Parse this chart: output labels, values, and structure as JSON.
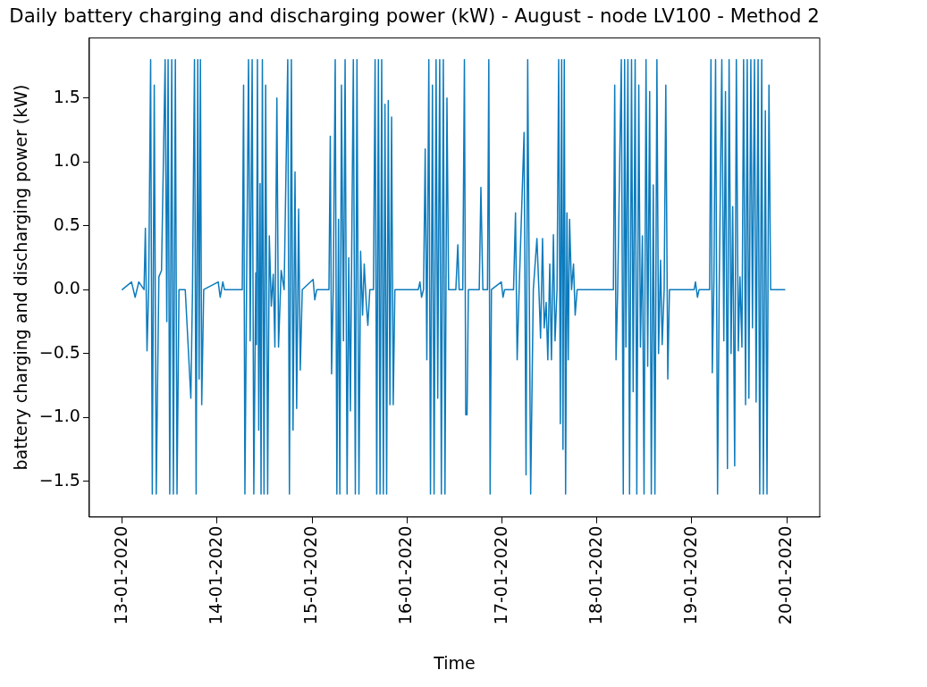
{
  "chart_data": {
    "type": "line",
    "title": "Daily battery charging and discharging power (kW) - August - node LV100 - Method 2",
    "xlabel": "Time",
    "ylabel": "battery charging and discharging power (kW)",
    "xlim": [
      "2020-01-12T15:40",
      "2020-01-20T08:20"
    ],
    "xticks": [
      {
        "value": "2020-01-13",
        "label": "13-01-2020"
      },
      {
        "value": "2020-01-14",
        "label": "14-01-2020"
      },
      {
        "value": "2020-01-15",
        "label": "15-01-2020"
      },
      {
        "value": "2020-01-16",
        "label": "16-01-2020"
      },
      {
        "value": "2020-01-17",
        "label": "17-01-2020"
      },
      {
        "value": "2020-01-18",
        "label": "18-01-2020"
      },
      {
        "value": "2020-01-19",
        "label": "19-01-2020"
      },
      {
        "value": "2020-01-20",
        "label": "20-01-2020"
      }
    ],
    "ylim": [
      -1.78,
      1.97
    ],
    "yticks": [
      {
        "value": -1.5,
        "label": "−1.5"
      },
      {
        "value": -1,
        "label": "−1.0"
      },
      {
        "value": -0.5,
        "label": "−0.5"
      },
      {
        "value": 0,
        "label": "0.0"
      },
      {
        "value": 0.5,
        "label": "0.5"
      },
      {
        "value": 1,
        "label": "1.0"
      },
      {
        "value": 1.5,
        "label": "1.5"
      }
    ],
    "grid": false,
    "legend": false,
    "marker": "none",
    "line_style": "solid",
    "x": [
      "2020-01-13T00:00",
      "2020-01-13T02:20",
      "2020-01-13T03:15",
      "2020-01-13T04:10",
      "2020-01-13T05:30",
      "2020-01-13T05:50",
      "2020-01-13T06:15",
      "2020-01-13T06:40",
      "2020-01-13T07:10",
      "2020-01-13T07:35",
      "2020-01-13T08:05",
      "2020-01-13T08:35",
      "2020-01-13T09:15",
      "2020-01-13T09:55",
      "2020-01-13T10:50",
      "2020-01-13T11:15",
      "2020-01-13T11:35",
      "2020-01-13T12:00",
      "2020-01-13T12:30",
      "2020-01-13T12:55",
      "2020-01-13T13:25",
      "2020-01-13T13:50",
      "2020-01-13T14:20",
      "2020-01-13T15:55",
      "2020-01-13T17:20",
      "2020-01-13T17:45",
      "2020-01-13T18:15",
      "2020-01-13T18:40",
      "2020-01-13T19:05",
      "2020-01-13T19:25",
      "2020-01-13T19:45",
      "2020-01-13T20:05",
      "2020-01-13T20:35",
      "2020-01-14T00:15",
      "2020-01-14T00:45",
      "2020-01-14T01:25",
      "2020-01-14T01:50",
      "2020-01-14T06:20",
      "2020-01-14T06:40",
      "2020-01-14T07:00",
      "2020-01-14T07:25",
      "2020-01-14T07:55",
      "2020-01-14T08:20",
      "2020-01-14T08:50",
      "2020-01-14T09:15",
      "2020-01-14T09:45",
      "2020-01-14T09:55",
      "2020-01-14T10:10",
      "2020-01-14T10:30",
      "2020-01-14T10:50",
      "2020-01-14T11:05",
      "2020-01-14T11:25",
      "2020-01-14T11:50",
      "2020-01-14T12:15",
      "2020-01-14T12:45",
      "2020-01-14T13:10",
      "2020-01-14T13:40",
      "2020-01-14T14:10",
      "2020-01-14T14:35",
      "2020-01-14T15:05",
      "2020-01-14T15:30",
      "2020-01-14T16:10",
      "2020-01-14T16:55",
      "2020-01-14T17:50",
      "2020-01-14T18:15",
      "2020-01-14T18:45",
      "2020-01-14T19:10",
      "2020-01-14T19:40",
      "2020-01-14T20:05",
      "2020-01-14T20:35",
      "2020-01-14T21:00",
      "2020-01-14T21:30",
      "2020-01-15T00:15",
      "2020-01-15T00:40",
      "2020-01-15T01:10",
      "2020-01-15T04:15",
      "2020-01-15T04:35",
      "2020-01-15T04:55",
      "2020-01-15T05:20",
      "2020-01-15T05:50",
      "2020-01-15T06:15",
      "2020-01-15T06:40",
      "2020-01-15T07:00",
      "2020-01-15T07:25",
      "2020-01-15T07:55",
      "2020-01-15T08:20",
      "2020-01-15T08:50",
      "2020-01-15T09:15",
      "2020-01-15T09:40",
      "2020-01-15T10:00",
      "2020-01-15T10:25",
      "2020-01-15T10:55",
      "2020-01-15T11:20",
      "2020-01-15T11:50",
      "2020-01-15T12:15",
      "2020-01-15T12:45",
      "2020-01-15T13:10",
      "2020-01-15T13:40",
      "2020-01-15T14:05",
      "2020-01-15T14:35",
      "2020-01-15T15:30",
      "2020-01-15T15:55",
      "2020-01-15T16:20",
      "2020-01-15T16:45",
      "2020-01-15T17:10",
      "2020-01-15T17:35",
      "2020-01-15T18:00",
      "2020-01-15T18:25",
      "2020-01-15T18:50",
      "2020-01-15T19:15",
      "2020-01-15T19:40",
      "2020-01-15T20:05",
      "2020-01-15T20:30",
      "2020-01-15T20:55",
      "2020-01-16T02:50",
      "2020-01-16T03:15",
      "2020-01-16T03:40",
      "2020-01-16T04:10",
      "2020-01-16T04:35",
      "2020-01-16T05:00",
      "2020-01-16T05:30",
      "2020-01-16T05:55",
      "2020-01-16T06:25",
      "2020-01-16T06:50",
      "2020-01-16T07:20",
      "2020-01-16T07:45",
      "2020-01-16T08:15",
      "2020-01-16T08:40",
      "2020-01-16T09:10",
      "2020-01-16T09:35",
      "2020-01-16T10:05",
      "2020-01-16T10:30",
      "2020-01-16T12:20",
      "2020-01-16T12:50",
      "2020-01-16T13:10",
      "2020-01-16T14:05",
      "2020-01-16T14:30",
      "2020-01-16T14:50",
      "2020-01-16T15:10",
      "2020-01-16T15:30",
      "2020-01-16T18:15",
      "2020-01-16T18:40",
      "2020-01-16T19:10",
      "2020-01-16T20:20",
      "2020-01-16T20:40",
      "2020-01-16T21:00",
      "2020-01-16T21:20",
      "2020-01-16T23:50",
      "2020-01-17T00:15",
      "2020-01-17T00:40",
      "2020-01-17T02:55",
      "2020-01-17T03:25",
      "2020-01-17T03:50",
      "2020-01-17T04:20",
      "2020-01-17T05:35",
      "2020-01-17T06:05",
      "2020-01-17T06:30",
      "2020-01-17T07:15",
      "2020-01-17T07:55",
      "2020-01-17T08:50",
      "2020-01-17T09:20",
      "2020-01-17T09:45",
      "2020-01-17T10:15",
      "2020-01-17T10:40",
      "2020-01-17T11:10",
      "2020-01-17T11:35",
      "2020-01-17T12:05",
      "2020-01-17T12:30",
      "2020-01-17T13:00",
      "2020-01-17T13:25",
      "2020-01-17T13:55",
      "2020-01-17T14:20",
      "2020-01-17T14:45",
      "2020-01-17T15:05",
      "2020-01-17T15:25",
      "2020-01-17T15:45",
      "2020-01-17T16:05",
      "2020-01-17T16:25",
      "2020-01-17T16:45",
      "2020-01-17T17:05",
      "2020-01-17T17:35",
      "2020-01-17T18:05",
      "2020-01-17T18:30",
      "2020-01-17T19:00",
      "2020-01-18T04:10",
      "2020-01-18T04:30",
      "2020-01-18T04:50",
      "2020-01-18T05:15",
      "2020-01-18T06:10",
      "2020-01-18T06:40",
      "2020-01-18T07:00",
      "2020-01-18T07:20",
      "2020-01-18T07:50",
      "2020-01-18T08:15",
      "2020-01-18T08:45",
      "2020-01-18T09:10",
      "2020-01-18T09:40",
      "2020-01-18T10:05",
      "2020-01-18T10:35",
      "2020-01-18T11:00",
      "2020-01-18T11:30",
      "2020-01-18T11:55",
      "2020-01-18T12:25",
      "2020-01-18T12:50",
      "2020-01-18T13:20",
      "2020-01-18T13:45",
      "2020-01-18T14:15",
      "2020-01-18T14:40",
      "2020-01-18T15:10",
      "2020-01-18T15:35",
      "2020-01-18T16:05",
      "2020-01-18T16:30",
      "2020-01-18T17:00",
      "2020-01-18T17:25",
      "2020-01-18T17:55",
      "2020-01-18T18:20",
      "2020-01-19T00:35",
      "2020-01-19T00:55",
      "2020-01-19T01:25",
      "2020-01-19T01:50",
      "2020-01-19T04:30",
      "2020-01-19T04:50",
      "2020-01-19T05:10",
      "2020-01-19T05:35",
      "2020-01-19T06:00",
      "2020-01-19T06:30",
      "2020-01-19T06:55",
      "2020-01-19T07:35",
      "2020-01-19T08:05",
      "2020-01-19T08:30",
      "2020-01-19T09:00",
      "2020-01-19T09:25",
      "2020-01-19T09:55",
      "2020-01-19T10:20",
      "2020-01-19T10:50",
      "2020-01-19T11:15",
      "2020-01-19T11:45",
      "2020-01-19T12:10",
      "2020-01-19T12:40",
      "2020-01-19T13:05",
      "2020-01-19T13:35",
      "2020-01-19T14:00",
      "2020-01-19T14:25",
      "2020-01-19T14:55",
      "2020-01-19T15:20",
      "2020-01-19T15:50",
      "2020-01-19T16:15",
      "2020-01-19T16:45",
      "2020-01-19T17:10",
      "2020-01-19T17:40",
      "2020-01-19T18:05",
      "2020-01-19T18:35",
      "2020-01-19T19:00",
      "2020-01-19T19:30",
      "2020-01-19T19:55",
      "2020-01-19T23:30"
    ],
    "values": [
      0,
      0.06,
      -0.06,
      0.06,
      0,
      0.48,
      -0.48,
      0,
      1.8,
      -1.6,
      1.6,
      -1.6,
      0.1,
      0.15,
      1.8,
      -0.25,
      1.8,
      -1.6,
      1.8,
      -1.6,
      1.8,
      -1.6,
      0,
      0,
      -0.85,
      0,
      1.8,
      -1.6,
      1.8,
      -0.7,
      1.8,
      -0.9,
      0,
      0.06,
      -0.06,
      0.06,
      0,
      0,
      1.6,
      -1.6,
      0,
      1.8,
      -0.4,
      1.8,
      -1.6,
      0.13,
      -0.43,
      1.8,
      -1.1,
      0.83,
      -1.6,
      1.8,
      -1.6,
      1.6,
      -1.6,
      0.42,
      -0.13,
      0.12,
      -0.45,
      1.5,
      -0.45,
      0.15,
      0,
      1.8,
      -1.6,
      1.8,
      -1.1,
      0.92,
      -0.93,
      0.63,
      -0.63,
      0,
      0.08,
      -0.08,
      0,
      0,
      1.2,
      -0.66,
      0,
      1.8,
      -1.6,
      0.55,
      -1.6,
      1.6,
      -0.4,
      1.8,
      -1.6,
      0.25,
      -0.95,
      0.3,
      1.8,
      -1.6,
      1.8,
      -1.6,
      0.3,
      -0.2,
      0.2,
      -0.1,
      -0.28,
      0,
      0,
      1.8,
      -1.6,
      1.8,
      -1.6,
      1.8,
      -1.6,
      1.45,
      -1.6,
      1.48,
      -0.9,
      1.35,
      -0.9,
      0,
      0,
      0.06,
      -0.06,
      0,
      1.1,
      -0.55,
      1.8,
      -1.6,
      1.6,
      -1.6,
      1.8,
      -0.85,
      1.8,
      -1.6,
      1.8,
      -1.6,
      1.5,
      0,
      0,
      0.35,
      0,
      0,
      1.8,
      -0.98,
      -0.98,
      0,
      0,
      0.8,
      0,
      0,
      1.8,
      -1.6,
      0,
      0.06,
      -0.06,
      0,
      0,
      0.6,
      -0.55,
      0,
      1.23,
      -1.45,
      1.8,
      -1.6,
      0,
      0.4,
      0,
      -0.38,
      0.4,
      -0.3,
      -0.1,
      -0.55,
      0.2,
      -0.55,
      0.43,
      -0.4,
      0,
      1.8,
      -1.05,
      1.8,
      -1.25,
      1.8,
      -1.6,
      0.6,
      -0.55,
      0.55,
      0,
      0.2,
      -0.2,
      0,
      0,
      1.6,
      -0.55,
      0,
      1.8,
      -1.6,
      1.8,
      -0.45,
      1.8,
      -1.6,
      1.8,
      -0.8,
      1.8,
      -1.6,
      1.6,
      -0.45,
      0.42,
      -1.6,
      1.8,
      -0.6,
      1.55,
      -1.6,
      0.82,
      -1.6,
      1.8,
      -0.5,
      0.23,
      -0.43,
      0,
      1.6,
      -0.7,
      0,
      0,
      0.06,
      -0.06,
      0,
      0,
      1.8,
      -0.65,
      0.07,
      1.8,
      -1.6,
      0,
      1.8,
      -0.4,
      1.55,
      -1.4,
      1.8,
      -0.5,
      0.65,
      -1.38,
      1.8,
      -0.48,
      0.1,
      -0.45,
      1.8,
      -0.9,
      1.8,
      -0.85,
      1.8,
      -0.3,
      1.8,
      -0.88,
      1.8,
      -1.6,
      1.8,
      -1.6,
      1.4,
      -1.6,
      1.6,
      0,
      0
    ],
    "color": "#0c7bbd"
  }
}
